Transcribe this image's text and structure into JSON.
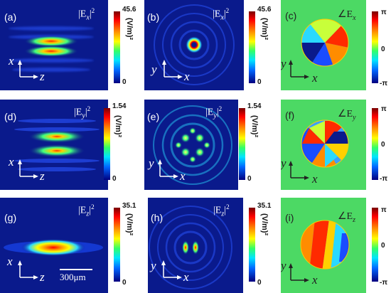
{
  "panels": {
    "a": {
      "label": "(a)",
      "qty": "|E",
      "sub": "x",
      "sup": "2",
      "ax1": "x",
      "ax2": "z",
      "cmax": "45.6",
      "cmin": "0",
      "unit": "(V/m)²"
    },
    "b": {
      "label": "(b)",
      "qty": "|E",
      "sub": "x",
      "sup": "2",
      "ax1": "y",
      "ax2": "x",
      "cmax": "45.6",
      "cmin": "0",
      "unit": "(V/m)²"
    },
    "c": {
      "label": "(c)",
      "qty": "∠E",
      "sub": "x",
      "ax1": "y",
      "ax2": "x",
      "cmax": "π",
      "cmid": "0",
      "cmin": "-π"
    },
    "d": {
      "label": "(d)",
      "qty": "|E",
      "sub": "y",
      "sup": "2",
      "ax1": "x",
      "ax2": "z",
      "cmax": "1.54",
      "cmin": "0",
      "unit": "(V/m)²"
    },
    "e": {
      "label": "(e)",
      "qty": "|E",
      "sub": "y",
      "sup": "2",
      "ax1": "y",
      "ax2": "x",
      "cmax": "1.54",
      "cmin": "0",
      "unit": "(V/m)²"
    },
    "f": {
      "label": "(f)",
      "qty": "∠E",
      "sub": "y",
      "ax1": "y",
      "ax2": "x",
      "cmax": "π",
      "cmid": "0",
      "cmin": "-π"
    },
    "g": {
      "label": "(g)",
      "qty": "|E",
      "sub": "z",
      "sup": "2",
      "ax1": "x",
      "ax2": "z",
      "cmax": "35.1",
      "cmin": "0",
      "unit": "(V/m)²",
      "scale": "300μm"
    },
    "h": {
      "label": "(h)",
      "qty": "|E",
      "sub": "z",
      "sup": "2",
      "ax1": "y",
      "ax2": "x",
      "cmax": "35.1",
      "cmin": "0",
      "unit": "(V/m)²"
    },
    "i": {
      "label": "(i)",
      "qty": "∠E",
      "sub": "z",
      "ax1": "y",
      "ax2": "x",
      "cmax": "π",
      "cmid": "0",
      "cmin": "-π"
    }
  },
  "colors": {
    "bg_blue": "#0a1a8c",
    "bg_green": "#4cd964"
  }
}
